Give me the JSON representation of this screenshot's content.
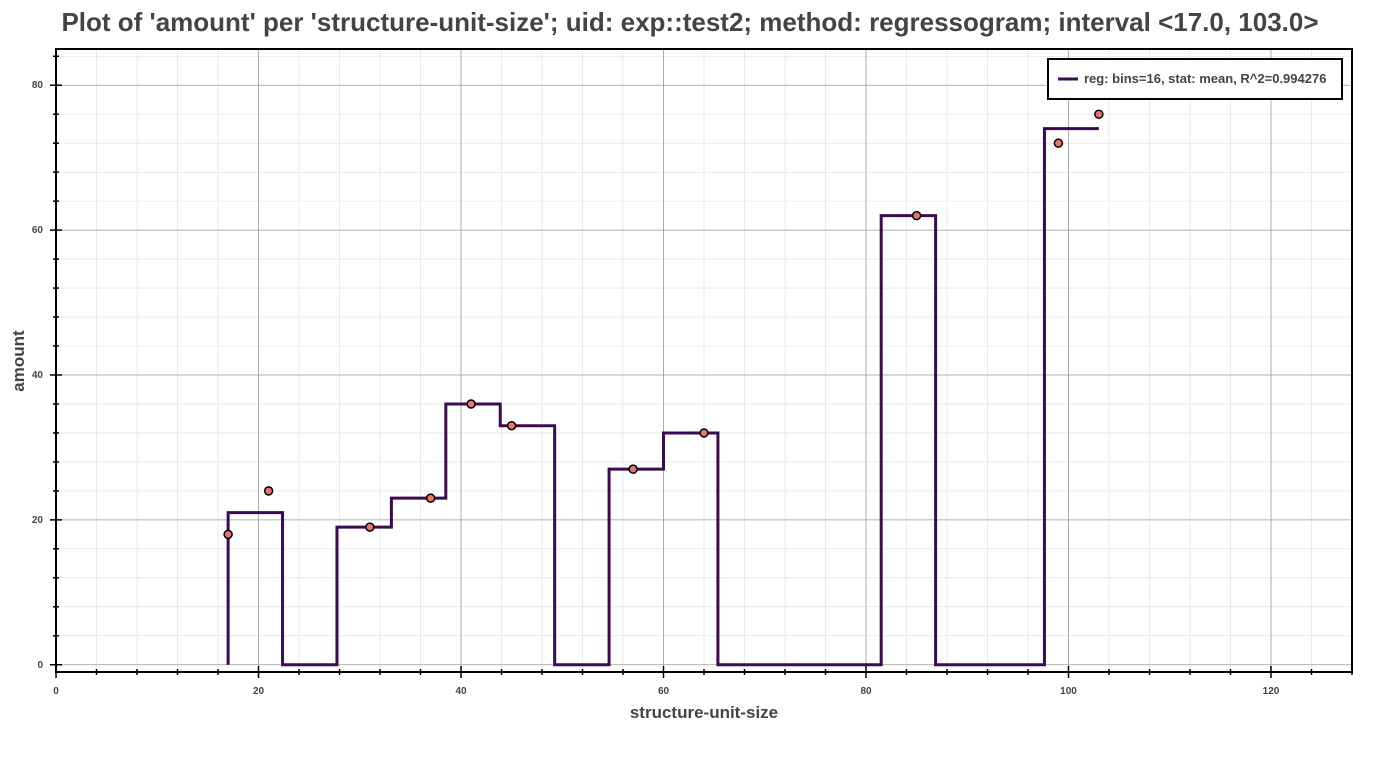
{
  "chart_data": {
    "type": "line",
    "title": "Plot of 'amount' per 'structure-unit-size'; uid: exp::test2; method: regressogram; interval <17.0, 103.0>",
    "xlabel": "structure-unit-size",
    "ylabel": "amount",
    "xlim": [
      0,
      128
    ],
    "ylim": [
      -1,
      85
    ],
    "x_ticks": [
      0,
      20,
      40,
      60,
      80,
      100,
      120
    ],
    "y_ticks": [
      0,
      20,
      40,
      60,
      80
    ],
    "grid": true,
    "legend": {
      "placement": "top-right",
      "entries": [
        "reg: bins=16, stat: mean, R^2=0.994276"
      ]
    },
    "series": [
      {
        "name": "reg: bins=16, stat: mean, R^2=0.994276",
        "kind": "step",
        "color": "#3b0a50",
        "bin_edges": [
          17,
          22.375,
          27.75,
          33.125,
          38.5,
          43.875,
          49.25,
          54.625,
          60,
          65.375,
          70.75,
          76.125,
          81.5,
          86.875,
          92.25,
          97.625,
          103
        ],
        "values": [
          21,
          0,
          19,
          23,
          36,
          33,
          0,
          27,
          32,
          0,
          0,
          0,
          62,
          0,
          0,
          74
        ]
      },
      {
        "kind": "scatter",
        "color": "#e8756a",
        "x": [
          17,
          21,
          31,
          37,
          41,
          45,
          57,
          64,
          85,
          99,
          103
        ],
        "y": [
          18,
          24,
          19,
          23,
          36,
          33,
          27,
          32,
          62,
          72,
          76
        ]
      }
    ]
  }
}
